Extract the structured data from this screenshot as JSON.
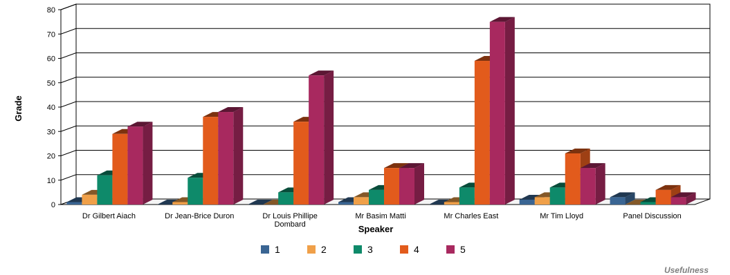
{
  "chart_data": {
    "type": "bar",
    "ylabel": "Grade",
    "xlabel": "Speaker",
    "ylim": [
      0,
      80
    ],
    "yticks": [
      0,
      10,
      20,
      30,
      40,
      50,
      60,
      70,
      80
    ],
    "grid": true,
    "legend_position": "bottom",
    "footer": "Usefulness",
    "categories": [
      [
        "Dr Gilbert Aiach"
      ],
      [
        "Dr Jean-Brice Duron"
      ],
      [
        "Dr Louis Phillipe",
        "Dombard"
      ],
      [
        "Mr Basim Matti"
      ],
      [
        "Mr Charles East"
      ],
      [
        "Mr Tim Lloyd"
      ],
      [
        "Panel Discussion"
      ]
    ],
    "series": [
      {
        "name": "1",
        "color": "#3a6593",
        "values": [
          1,
          0,
          0,
          1,
          0,
          2,
          3
        ]
      },
      {
        "name": "2",
        "color": "#f0a049",
        "values": [
          4,
          1,
          0,
          3,
          1,
          3,
          0
        ]
      },
      {
        "name": "3",
        "color": "#0e8a6a",
        "values": [
          12,
          11,
          5,
          6,
          7,
          7,
          1
        ]
      },
      {
        "name": "4",
        "color": "#e25b1c",
        "values": [
          29,
          36,
          34,
          15,
          59,
          21,
          6
        ]
      },
      {
        "name": "5",
        "color": "#a8295f",
        "values": [
          32,
          38,
          53,
          15,
          75,
          15,
          3
        ]
      }
    ]
  }
}
